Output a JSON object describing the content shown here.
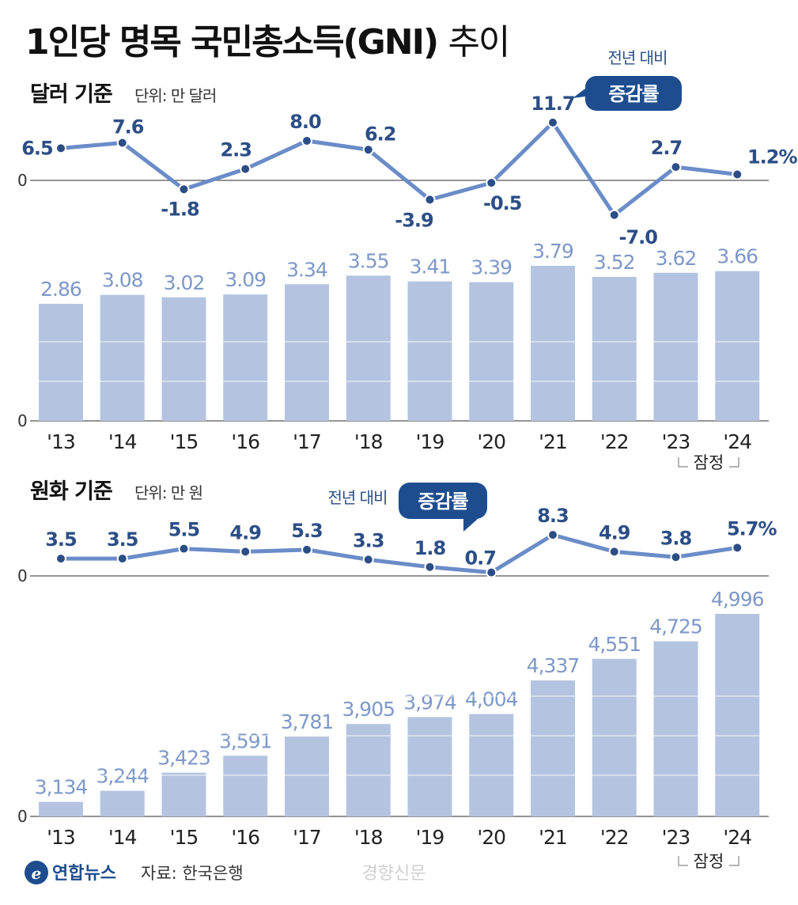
{
  "title": {
    "bold": "1인당 명목 국민총소득(GNI)",
    "light": "추이"
  },
  "note": {
    "yoy": "전년 대비",
    "badge": "증감률",
    "provisional": "잠정"
  },
  "footer": {
    "brand": "연합뉴스",
    "source": "자료: 한국은행",
    "watermark": "경향신문"
  },
  "colors": {
    "bar": "#b4c4e0",
    "line": "#6a8cc8",
    "label": "#2c4e86",
    "badge": "#1e4d8f"
  },
  "chart_data": [
    {
      "type": "bar+line",
      "title": "달러 기준",
      "unit": "단위: 만 달러",
      "categories": [
        "'13",
        "'14",
        "'15",
        "'16",
        "'17",
        "'18",
        "'19",
        "'20",
        "'21",
        "'22",
        "'23",
        "'24"
      ],
      "bar_values": [
        2.86,
        3.08,
        3.02,
        3.09,
        3.34,
        3.55,
        3.41,
        3.39,
        3.79,
        3.52,
        3.62,
        3.66
      ],
      "bar_labels": [
        "2.86",
        "3.08",
        "3.02",
        "3.09",
        "3.34",
        "3.55",
        "3.41",
        "3.39",
        "3.79",
        "3.52",
        "3.62",
        "3.66"
      ],
      "growth_values": [
        6.5,
        7.6,
        -1.8,
        2.3,
        8.0,
        6.2,
        -3.9,
        -0.5,
        11.7,
        -7.0,
        2.7,
        1.2
      ],
      "growth_labels": [
        "6.5",
        "7.6",
        "-1.8",
        "2.3",
        "8.0",
        "6.2",
        "-3.9",
        "-0.5",
        "11.7",
        "-7.0",
        "2.7",
        "1.2%"
      ],
      "zero_label": "0"
    },
    {
      "type": "bar+line",
      "title": "원화 기준",
      "unit": "단위: 만 원",
      "categories": [
        "'13",
        "'14",
        "'15",
        "'16",
        "'17",
        "'18",
        "'19",
        "'20",
        "'21",
        "'22",
        "'23",
        "'24"
      ],
      "bar_values": [
        3134,
        3244,
        3423,
        3591,
        3781,
        3905,
        3974,
        4004,
        4337,
        4551,
        4725,
        4996
      ],
      "bar_labels": [
        "3,134",
        "3,244",
        "3,423",
        "3,591",
        "3,781",
        "3,905",
        "3,974",
        "4,004",
        "4,337",
        "4,551",
        "4,725",
        "4,996"
      ],
      "growth_values": [
        3.5,
        3.5,
        5.5,
        4.9,
        5.3,
        3.3,
        1.8,
        0.7,
        8.3,
        4.9,
        3.8,
        5.7
      ],
      "growth_labels": [
        "3.5",
        "3.5",
        "5.5",
        "4.9",
        "5.3",
        "3.3",
        "1.8",
        "0.7",
        "8.3",
        "4.9",
        "3.8",
        "5.7%"
      ],
      "zero_label": "0"
    }
  ]
}
